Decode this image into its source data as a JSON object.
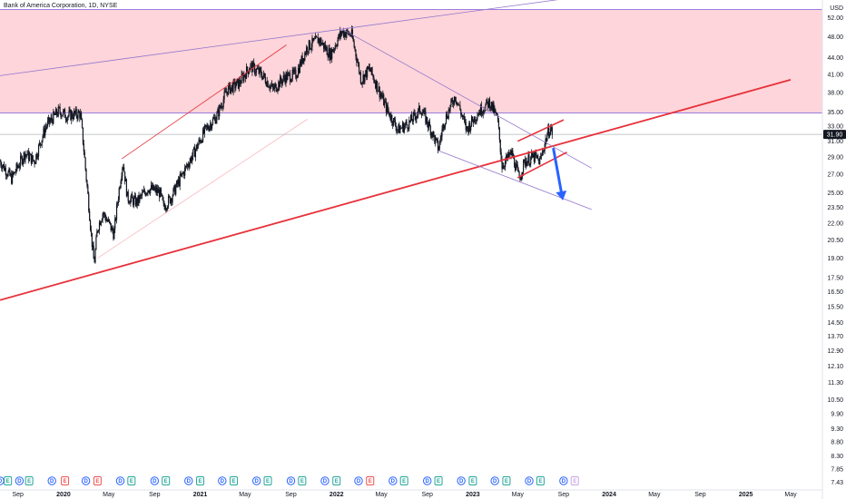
{
  "chart_data": {
    "type": "candlestick",
    "title": "Bank of America Corporation, 1D, NYSE",
    "currency": "USD",
    "y_scale": "log",
    "y_range": [
      7.2,
      56
    ],
    "x_range": [
      "2019-07-15",
      "2025-07-25"
    ],
    "last_price": "31.90",
    "colors": {
      "candle": "#131722",
      "resistance_zone_fill": "#fdd5da",
      "zone_border": "#9c7ce0",
      "trend_red": "#e8303a",
      "trend_red_thin": "#f28c96",
      "trend_purple": "#9575cd",
      "arrow_blue": "#2962ff",
      "last_price_badge": "#131722",
      "dividend_marker": "#2962ff",
      "earnings_marker_pos": "#26a69a",
      "earnings_marker_neg": "#ef5350"
    },
    "y_ticks": [
      "52.00",
      "48.00",
      "44.00",
      "41.00",
      "38.00",
      "35.00",
      "33.00",
      "31.00",
      "29.00",
      "27.00",
      "25.00",
      "23.50",
      "22.00",
      "20.50",
      "19.00",
      "17.50",
      "16.50",
      "15.50",
      "14.50",
      "13.70",
      "12.90",
      "12.10",
      "11.30",
      "10.50",
      "9.90",
      "9.30",
      "8.80",
      "8.30",
      "7.85",
      "7.43"
    ],
    "x_ticks": [
      {
        "label": "Sep",
        "date": "2019-09-01"
      },
      {
        "label": "2020",
        "date": "2020-01-01"
      },
      {
        "label": "May",
        "date": "2020-05-01"
      },
      {
        "label": "Sep",
        "date": "2020-09-01"
      },
      {
        "label": "2021",
        "date": "2021-01-01"
      },
      {
        "label": "May",
        "date": "2021-05-01"
      },
      {
        "label": "Sep",
        "date": "2021-09-01"
      },
      {
        "label": "2022",
        "date": "2022-01-01"
      },
      {
        "label": "May",
        "date": "2022-05-01"
      },
      {
        "label": "Sep",
        "date": "2022-09-01"
      },
      {
        "label": "2023",
        "date": "2023-01-01"
      },
      {
        "label": "May",
        "date": "2023-05-01"
      },
      {
        "label": "Sep",
        "date": "2023-09-01"
      },
      {
        "label": "2024",
        "date": "2024-01-01"
      },
      {
        "label": "May",
        "date": "2024-05-01"
      },
      {
        "label": "Sep",
        "date": "2024-09-01"
      },
      {
        "label": "2025",
        "date": "2025-01-01"
      },
      {
        "label": "May",
        "date": "2025-05-01"
      }
    ],
    "price_path": [
      [
        "2019-07-15",
        28.5
      ],
      [
        "2019-08-15",
        26.5
      ],
      [
        "2019-09-20",
        29.5
      ],
      [
        "2019-10-15",
        28.5
      ],
      [
        "2019-11-15",
        33.0
      ],
      [
        "2019-12-20",
        35.2
      ],
      [
        "2020-01-10",
        34.5
      ],
      [
        "2020-02-15",
        34.8
      ],
      [
        "2020-03-01",
        27.0
      ],
      [
        "2020-03-15",
        21.0
      ],
      [
        "2020-03-23",
        18.5
      ],
      [
        "2020-04-01",
        21.5
      ],
      [
        "2020-04-15",
        23.0
      ],
      [
        "2020-05-01",
        22.0
      ],
      [
        "2020-05-15",
        21.0
      ],
      [
        "2020-06-08",
        28.5
      ],
      [
        "2020-06-20",
        24.5
      ],
      [
        "2020-07-15",
        24.0
      ],
      [
        "2020-08-15",
        25.5
      ],
      [
        "2020-09-15",
        25.0
      ],
      [
        "2020-09-25",
        23.5
      ],
      [
        "2020-10-15",
        24.5
      ],
      [
        "2020-11-15",
        27.0
      ],
      [
        "2020-12-15",
        29.5
      ],
      [
        "2021-01-15",
        32.5
      ],
      [
        "2021-02-15",
        34.5
      ],
      [
        "2021-03-15",
        38.5
      ],
      [
        "2021-04-15",
        39.5
      ],
      [
        "2021-05-15",
        42.5
      ],
      [
        "2021-06-15",
        41.0
      ],
      [
        "2021-07-15",
        38.5
      ],
      [
        "2021-08-15",
        40.5
      ],
      [
        "2021-09-15",
        41.0
      ],
      [
        "2021-10-15",
        46.0
      ],
      [
        "2021-11-15",
        47.5
      ],
      [
        "2021-12-15",
        44.5
      ],
      [
        "2022-01-15",
        49.0
      ],
      [
        "2022-02-10",
        48.5
      ],
      [
        "2022-03-08",
        40.0
      ],
      [
        "2022-03-30",
        42.0
      ],
      [
        "2022-05-15",
        35.5
      ],
      [
        "2022-06-15",
        32.5
      ],
      [
        "2022-07-15",
        33.5
      ],
      [
        "2022-08-15",
        35.5
      ],
      [
        "2022-09-15",
        32.0
      ],
      [
        "2022-10-01",
        30.0
      ],
      [
        "2022-10-15",
        33.5
      ],
      [
        "2022-11-15",
        37.5
      ],
      [
        "2022-12-15",
        32.5
      ],
      [
        "2023-01-15",
        35.0
      ],
      [
        "2023-02-15",
        36.5
      ],
      [
        "2023-03-08",
        34.0
      ],
      [
        "2023-03-20",
        28.0
      ],
      [
        "2023-04-15",
        29.5
      ],
      [
        "2023-05-05",
        26.5
      ],
      [
        "2023-05-20",
        28.5
      ],
      [
        "2023-06-15",
        29.0
      ],
      [
        "2023-06-30",
        28.5
      ],
      [
        "2023-07-20",
        32.0
      ],
      [
        "2023-07-27",
        32.8
      ],
      [
        "2023-08-03",
        31.9
      ]
    ],
    "zones": [
      {
        "type": "rectangle",
        "from": "2019-07-15",
        "to": "2025-07-25",
        "y_from": 34.9,
        "y_to": 53.8
      }
    ],
    "lines": [
      {
        "id": "support-major",
        "color": "red",
        "points": [
          [
            "2019-07-15",
            15.94
          ],
          [
            "2025-05-01",
            40.1
          ]
        ]
      },
      {
        "id": "purple-upper-channel",
        "color": "purple",
        "points": [
          [
            "2019-07-15",
            40.8
          ],
          [
            "2023-11-01",
            57.0
          ]
        ]
      },
      {
        "id": "red-thin-upper",
        "color": "red",
        "points": [
          [
            "2020-06-05",
            28.8
          ],
          [
            "2021-08-20",
            46.4
          ]
        ]
      },
      {
        "id": "pink-faint-lower",
        "color": "pink",
        "points": [
          [
            "2020-04-01",
            19.0
          ],
          [
            "2021-10-15",
            34.0
          ]
        ]
      },
      {
        "id": "downtrend-upper",
        "color": "purple",
        "points": [
          [
            "2022-01-18",
            49.5
          ],
          [
            "2023-11-15",
            27.7
          ]
        ]
      },
      {
        "id": "downtrend-lower",
        "color": "purple",
        "points": [
          [
            "2022-10-01",
            29.8
          ],
          [
            "2023-11-15",
            23.3
          ]
        ]
      },
      {
        "id": "flag-upper",
        "color": "red",
        "points": [
          [
            "2023-05-01",
            31.0
          ],
          [
            "2023-09-01",
            33.9
          ]
        ]
      },
      {
        "id": "flag-lower",
        "color": "red",
        "points": [
          [
            "2023-05-01",
            26.6
          ],
          [
            "2023-09-10",
            29.6
          ]
        ]
      }
    ],
    "arrows": [
      {
        "id": "projection-arrow",
        "color": "blue",
        "from": [
          "2023-08-05",
          30.0
        ],
        "to": [
          "2023-08-30",
          24.2
        ]
      }
    ],
    "event_markers": [
      {
        "kind": "D",
        "date": "2019-07-15"
      },
      {
        "kind": "E",
        "date": "2019-08-05"
      },
      {
        "kind": "D",
        "date": "2019-09-05"
      },
      {
        "kind": "E",
        "date": "2019-10-01"
      },
      {
        "kind": "D",
        "date": "2019-12-01"
      },
      {
        "kind": "E",
        "date": "2020-01-05"
      },
      {
        "kind": "D",
        "date": "2020-03-01"
      },
      {
        "kind": "E",
        "date": "2020-04-01"
      },
      {
        "kind": "D",
        "date": "2020-06-01"
      },
      {
        "kind": "E",
        "date": "2020-07-01"
      },
      {
        "kind": "D",
        "date": "2020-09-01"
      },
      {
        "kind": "E",
        "date": "2020-10-01"
      },
      {
        "kind": "D",
        "date": "2020-12-01"
      },
      {
        "kind": "E",
        "date": "2021-01-01"
      },
      {
        "kind": "D",
        "date": "2021-03-01"
      },
      {
        "kind": "E",
        "date": "2021-04-01"
      },
      {
        "kind": "D",
        "date": "2021-06-01"
      },
      {
        "kind": "E",
        "date": "2021-07-01"
      },
      {
        "kind": "D",
        "date": "2021-09-01"
      },
      {
        "kind": "E",
        "date": "2021-10-01"
      },
      {
        "kind": "D",
        "date": "2021-12-01"
      },
      {
        "kind": "E",
        "date": "2022-01-01"
      },
      {
        "kind": "D",
        "date": "2022-03-01"
      },
      {
        "kind": "E",
        "date": "2022-04-01"
      },
      {
        "kind": "D",
        "date": "2022-06-01"
      },
      {
        "kind": "E",
        "date": "2022-07-01"
      },
      {
        "kind": "D",
        "date": "2022-09-01"
      },
      {
        "kind": "E",
        "date": "2022-10-01"
      },
      {
        "kind": "D",
        "date": "2022-12-01"
      },
      {
        "kind": "E",
        "date": "2023-01-01"
      },
      {
        "kind": "D",
        "date": "2023-03-01"
      },
      {
        "kind": "E",
        "date": "2023-04-01"
      },
      {
        "kind": "D",
        "date": "2023-06-01"
      },
      {
        "kind": "E",
        "date": "2023-07-01"
      },
      {
        "kind": "D",
        "date": "2023-09-01"
      },
      {
        "kind": "E",
        "date": "2023-10-01"
      }
    ],
    "event_marker_styles": [
      "neg",
      "pos",
      "neg",
      "pos",
      "neg",
      "neg",
      "neg",
      "neg",
      "neg",
      "pos",
      "neg",
      "pos",
      "neg",
      "pos",
      "neg",
      "pos",
      "neg",
      "pos",
      "neg",
      "pos",
      "neg",
      "pos",
      "neg",
      "neg",
      "neg",
      "pos",
      "neg",
      "pos",
      "neg",
      "pos",
      "neg",
      "pos",
      "neg",
      "pos",
      "neg",
      "future"
    ]
  }
}
